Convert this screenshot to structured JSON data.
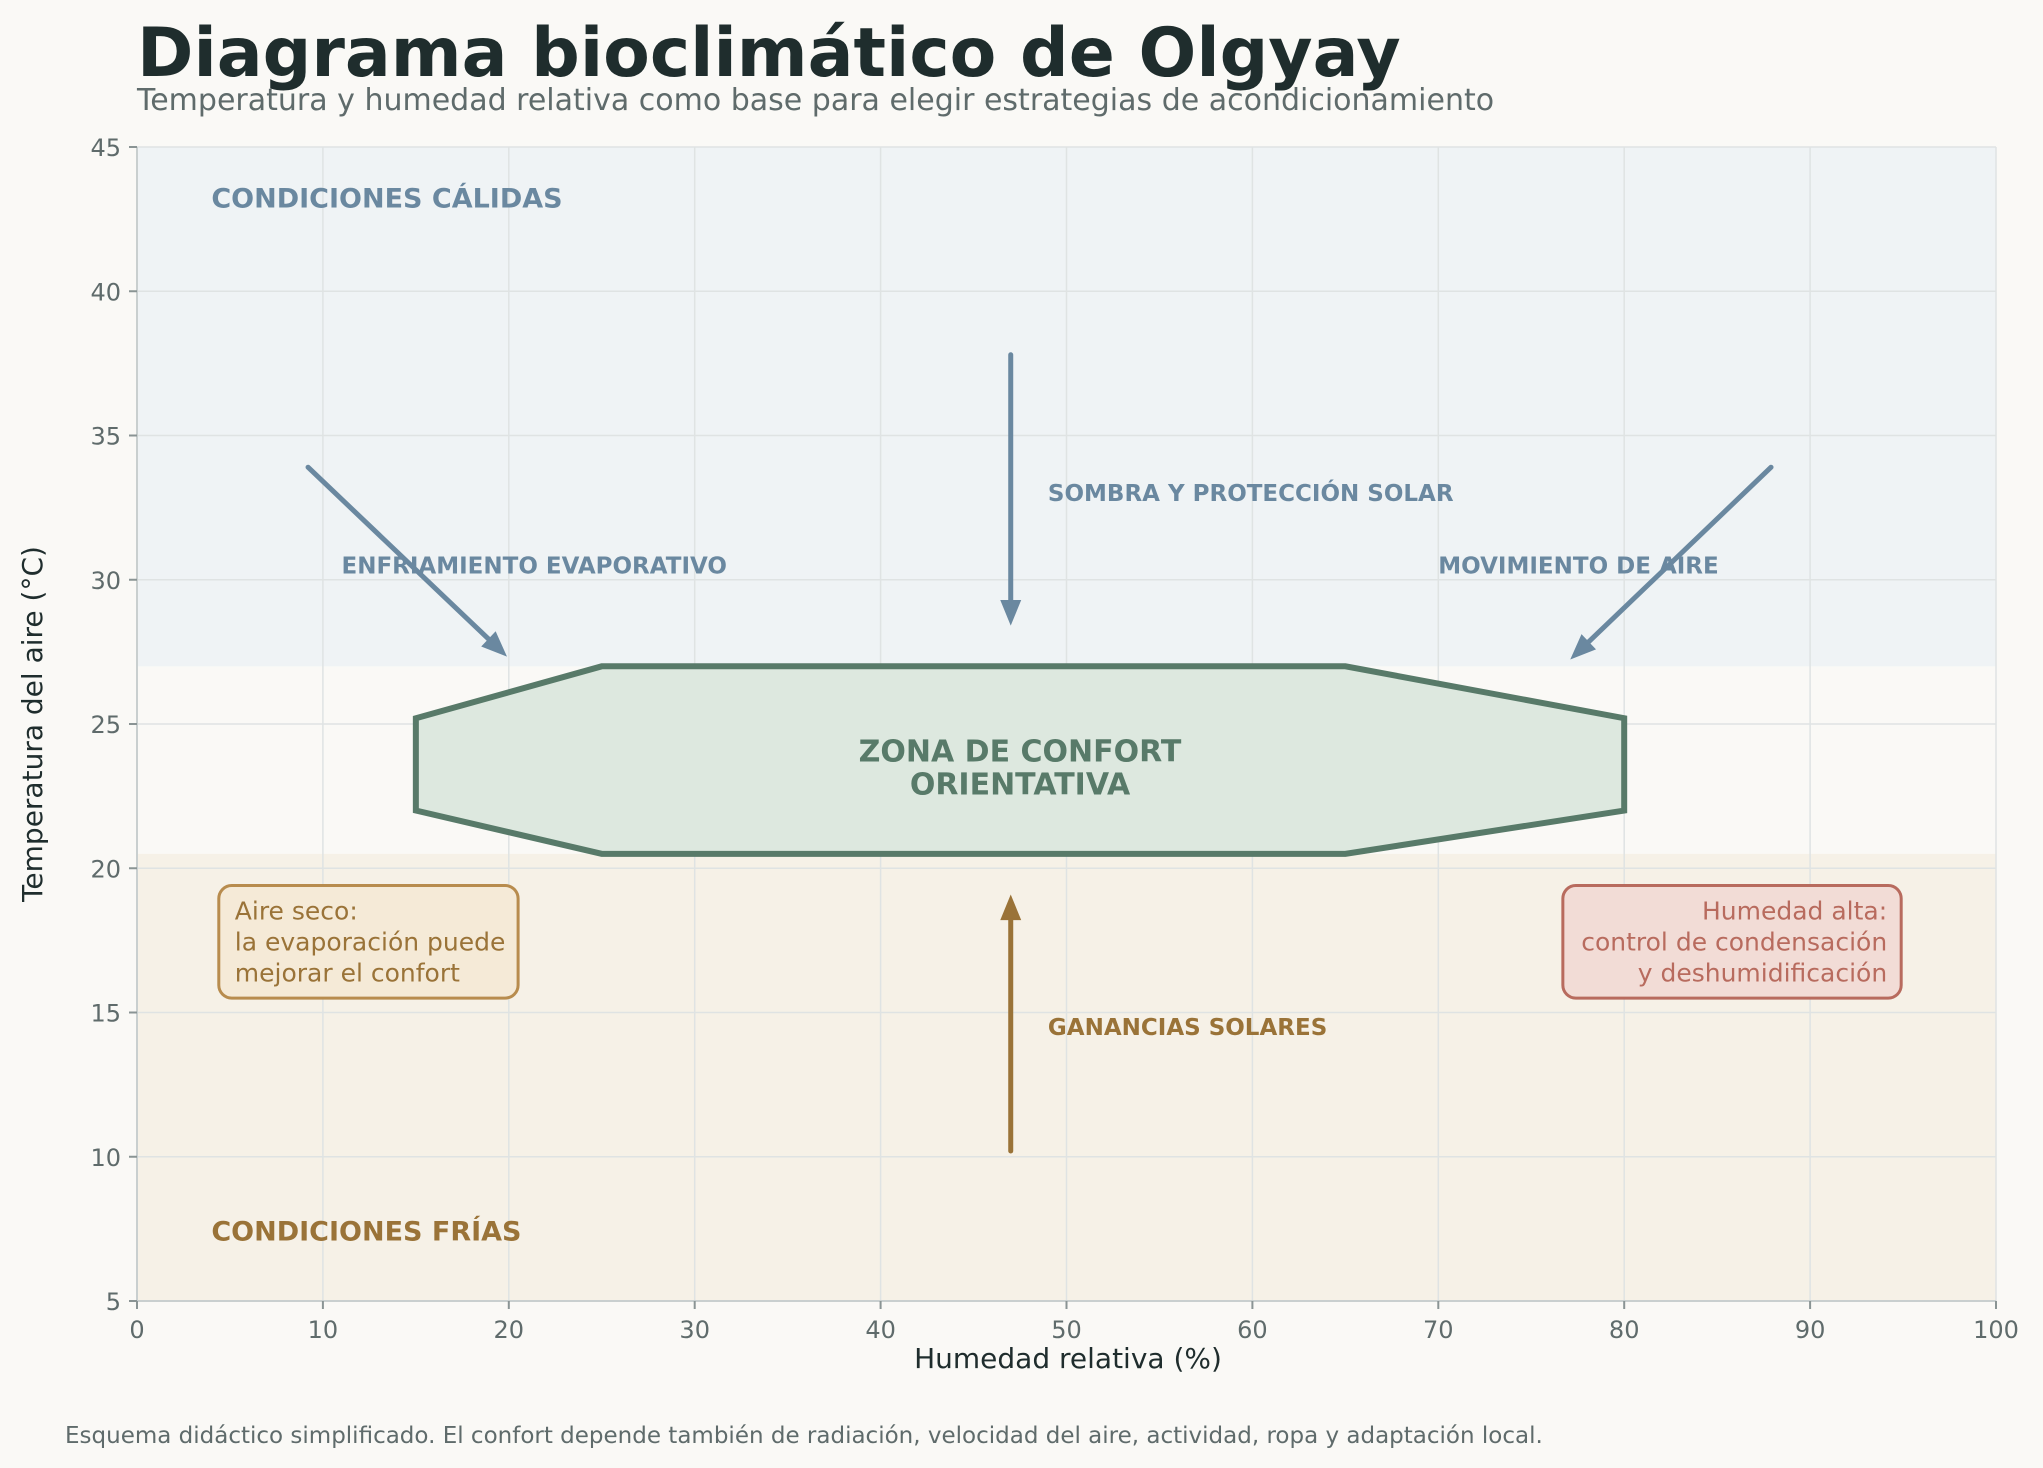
{
  "title": "Diagrama bioclimático de Olgyay",
  "subtitle": "Temperatura y humedad relativa como base para elegir estrategias de acondicionamiento",
  "footnote": "Esquema didáctico simplificado. El confort depende también de radiación, velocidad del aire, actividad, ropa y adaptación local.",
  "colors": {
    "background": "#faf9f6",
    "warm_band": "#eff3f5",
    "cold_band": "#f6f1e7",
    "grid": "#dfe3e3",
    "warm_accent": "#6a88a0",
    "cold_accent": "#9a7338",
    "comfort_fill": "#dde8df",
    "comfort_stroke": "#587a69",
    "dry_box_fill": "#f5ead7",
    "dry_box_stroke": "#b88c4e",
    "humid_box_fill": "#f2dcd6",
    "humid_box_stroke": "#b86b5e"
  },
  "chart_data": {
    "type": "diagram",
    "xlabel": "Humedad relativa (%)",
    "ylabel": "Temperatura del aire (°C)",
    "xlim": [
      0,
      100
    ],
    "ylim": [
      5,
      45
    ],
    "x_ticks": [
      "0",
      "10",
      "20",
      "30",
      "40",
      "50",
      "60",
      "70",
      "80",
      "90",
      "100"
    ],
    "y_ticks": [
      "5",
      "10",
      "15",
      "20",
      "25",
      "30",
      "35",
      "40",
      "45"
    ],
    "grid": true,
    "bands": [
      {
        "id": "warm",
        "y_from": 27,
        "y_to": 45
      },
      {
        "id": "cold",
        "y_from": 5,
        "y_to": 20.5
      }
    ],
    "regions": {
      "warm": {
        "label": "CONDICIONES CÁLIDAS",
        "x": 4,
        "y": 42.9
      },
      "cold": {
        "label": "CONDICIONES FRÍAS",
        "x": 4,
        "y": 7.1
      }
    },
    "comfort_zone": {
      "label_lines": [
        "ZONA DE CONFORT",
        "ORIENTATIVA"
      ],
      "label_x": 47.5,
      "label_y": 23.7,
      "polygon": [
        [
          15,
          22
        ],
        [
          15,
          25.2
        ],
        [
          25,
          27
        ],
        [
          65,
          27
        ],
        [
          80,
          25.2
        ],
        [
          80,
          22
        ],
        [
          65,
          20.5
        ],
        [
          25,
          20.5
        ]
      ]
    },
    "strategies": [
      {
        "id": "evaporative",
        "label": "ENFRIAMIENTO EVAPORATIVO",
        "label_x": 11,
        "label_y": 30.5,
        "from": [
          9.2,
          33.9
        ],
        "to": [
          19.8,
          27.4
        ],
        "tone": "warm"
      },
      {
        "id": "shade",
        "label": "SOMBRA Y PROTECCIÓN SOLAR",
        "label_x": 49,
        "label_y": 33.0,
        "from": [
          47,
          37.8
        ],
        "to": [
          47,
          28.5
        ],
        "tone": "warm"
      },
      {
        "id": "air",
        "label": "MOVIMIENTO DE AIRE",
        "label_x": 70,
        "label_y": 30.5,
        "from": [
          87.9,
          33.9
        ],
        "to": [
          77.2,
          27.3
        ],
        "tone": "warm"
      },
      {
        "id": "solar",
        "label": "GANANCIAS SOLARES",
        "label_x": 49,
        "label_y": 14.5,
        "from": [
          47,
          10.2
        ],
        "to": [
          47,
          19.0
        ],
        "tone": "cold"
      }
    ],
    "annotations": [
      {
        "id": "dry",
        "lines": [
          "Aire seco:",
          "la evaporación puede",
          "mejorar el confort"
        ],
        "x_from": 4.4,
        "x_to": 20.5,
        "y_from": 15.5,
        "y_to": 19.4,
        "align": "left"
      },
      {
        "id": "humid",
        "lines": [
          "Humedad alta:",
          "control de condensación",
          "y deshumidificación"
        ],
        "x_from": 76.7,
        "x_to": 94.9,
        "y_from": 15.5,
        "y_to": 19.4,
        "align": "right"
      }
    ]
  }
}
